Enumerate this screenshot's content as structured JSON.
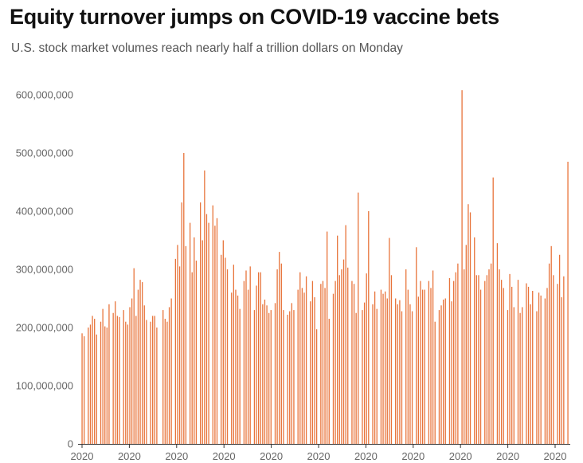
{
  "title": "Equity turnover jumps on COVID-19 vaccine bets",
  "subtitle": "U.S. stock market volumes reach nearly half a trillion dollars on Monday",
  "colors": {
    "bar": "#e8743b",
    "axis": "#333333",
    "tick_text": "#666666"
  },
  "chart_data": {
    "type": "bar",
    "title": "Equity turnover jumps on COVID-19 vaccine bets",
    "subtitle": "U.S. stock market volumes reach nearly half a trillion dollars on Monday",
    "xlabel": "",
    "ylabel": "",
    "ylim": [
      0,
      600000000
    ],
    "yticks": [
      0,
      100000000,
      200000000,
      300000000,
      400000000,
      500000000,
      600000000
    ],
    "ytick_labels": [
      "0",
      "100,000,000",
      "200,000,000",
      "300,000,000",
      "400,000,000",
      "500,000,000",
      "600,000,000"
    ],
    "xtick_labels": [
      "2020",
      "2020",
      "2020",
      "2020",
      "2020",
      "2020",
      "2020",
      "2020",
      "2020",
      "2020",
      "2020"
    ],
    "grid": false,
    "values": [
      190000000,
      185000000,
      0,
      200000000,
      205000000,
      220000000,
      215000000,
      188000000,
      0,
      210000000,
      232000000,
      202000000,
      200000000,
      240000000,
      0,
      225000000,
      245000000,
      220000000,
      218000000,
      0,
      230000000,
      210000000,
      205000000,
      235000000,
      250000000,
      302000000,
      220000000,
      265000000,
      282000000,
      278000000,
      238000000,
      213000000,
      0,
      210000000,
      220000000,
      220000000,
      200000000,
      0,
      0,
      230000000,
      215000000,
      210000000,
      235000000,
      250000000,
      0,
      318000000,
      342000000,
      305000000,
      415000000,
      500000000,
      340000000,
      0,
      380000000,
      295000000,
      355000000,
      315000000,
      0,
      415000000,
      350000000,
      470000000,
      395000000,
      380000000,
      0,
      410000000,
      375000000,
      388000000,
      0,
      325000000,
      350000000,
      320000000,
      300000000,
      0,
      260000000,
      308000000,
      265000000,
      255000000,
      232000000,
      0,
      280000000,
      298000000,
      265000000,
      305000000,
      0,
      230000000,
      272000000,
      295000000,
      295000000,
      240000000,
      248000000,
      238000000,
      225000000,
      230000000,
      0,
      242000000,
      300000000,
      330000000,
      310000000,
      230000000,
      0,
      222000000,
      228000000,
      242000000,
      230000000,
      0,
      265000000,
      295000000,
      268000000,
      260000000,
      288000000,
      0,
      245000000,
      280000000,
      252000000,
      197000000,
      0,
      275000000,
      280000000,
      268000000,
      365000000,
      215000000,
      0,
      258000000,
      280000000,
      358000000,
      290000000,
      300000000,
      317000000,
      376000000,
      303000000,
      0,
      280000000,
      275000000,
      225000000,
      432000000,
      0,
      230000000,
      243000000,
      293000000,
      400000000,
      0,
      240000000,
      262000000,
      232000000,
      0,
      265000000,
      258000000,
      262000000,
      250000000,
      354000000,
      290000000,
      0,
      250000000,
      240000000,
      247000000,
      228000000,
      0,
      300000000,
      265000000,
      240000000,
      228000000,
      0,
      338000000,
      253000000,
      280000000,
      265000000,
      265000000,
      0,
      280000000,
      268000000,
      298000000,
      210000000,
      0,
      230000000,
      238000000,
      248000000,
      250000000,
      0,
      285000000,
      245000000,
      280000000,
      295000000,
      310000000,
      0,
      608000000,
      300000000,
      342000000,
      412000000,
      398000000,
      0,
      355000000,
      290000000,
      290000000,
      265000000,
      0,
      280000000,
      290000000,
      300000000,
      310000000,
      458000000,
      0,
      345000000,
      300000000,
      282000000,
      268000000,
      0,
      230000000,
      292000000,
      270000000,
      235000000,
      0,
      282000000,
      225000000,
      235000000,
      0,
      276000000,
      270000000,
      240000000,
      263000000,
      0,
      228000000,
      260000000,
      255000000,
      0,
      250000000,
      268000000,
      310000000,
      340000000,
      290000000,
      0,
      275000000,
      325000000,
      252000000,
      288000000,
      0,
      485000000
    ]
  }
}
